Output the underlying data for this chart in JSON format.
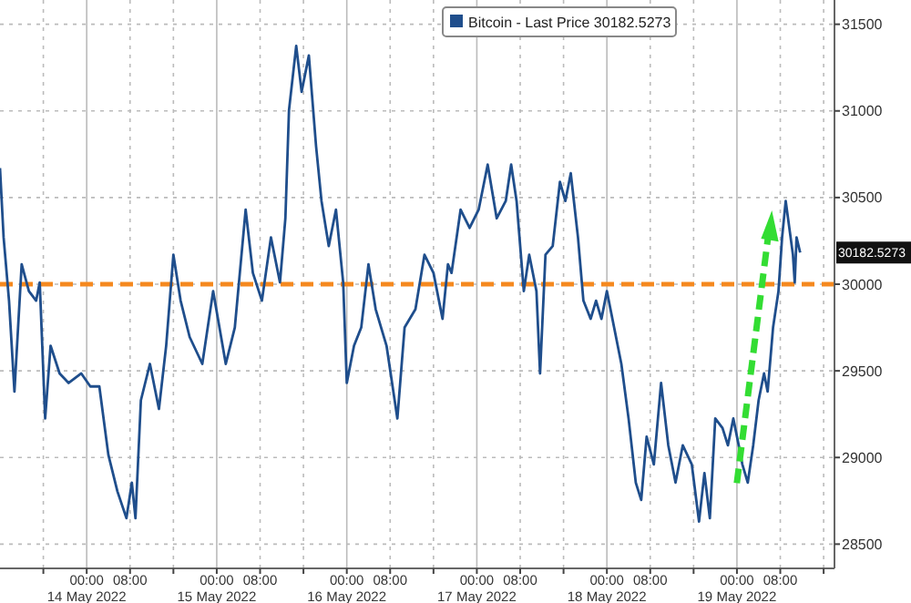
{
  "chart_data": {
    "type": "line",
    "xlim": [
      "2022-05-13T08:00",
      "2022-05-19T18:00"
    ],
    "ylim": [
      28360,
      31640
    ],
    "yticks": [
      28500,
      29000,
      29500,
      30000,
      30500,
      31000,
      31500
    ],
    "xticks": [
      {
        "value": "2022-05-13T16:00",
        "label": null
      },
      {
        "value": "2022-05-14T00:00",
        "label": "00:00\n14 May 2022"
      },
      {
        "value": "2022-05-14T08:00",
        "label": "08:00"
      },
      {
        "value": "2022-05-14T16:00",
        "label": null
      },
      {
        "value": "2022-05-15T00:00",
        "label": "00:00\n15 May 2022"
      },
      {
        "value": "2022-05-15T08:00",
        "label": "08:00"
      },
      {
        "value": "2022-05-15T16:00",
        "label": null
      },
      {
        "value": "2022-05-16T00:00",
        "label": "00:00\n16 May 2022"
      },
      {
        "value": "2022-05-16T08:00",
        "label": "08:00"
      },
      {
        "value": "2022-05-16T16:00",
        "label": null
      },
      {
        "value": "2022-05-17T00:00",
        "label": "00:00\n17 May 2022"
      },
      {
        "value": "2022-05-17T08:00",
        "label": "08:00"
      },
      {
        "value": "2022-05-17T16:00",
        "label": null
      },
      {
        "value": "2022-05-18T00:00",
        "label": "00:00\n18 May 2022"
      },
      {
        "value": "2022-05-18T08:00",
        "label": "08:00"
      },
      {
        "value": "2022-05-18T16:00",
        "label": null
      },
      {
        "value": "2022-05-19T00:00",
        "label": "00:00\n19 May 2022"
      },
      {
        "value": "2022-05-19T08:00",
        "label": "08:00"
      },
      {
        "value": "2022-05-19T16:00",
        "label": null
      }
    ],
    "grid": true,
    "legend": "top right",
    "marker": "none",
    "line_style": "solid",
    "ref_lines": [
      {
        "axis": "y",
        "value": 30000,
        "color": "#f5891f",
        "line_style": "dashed"
      }
    ],
    "annotations": [
      "30182.5273"
    ],
    "x": [
      "2022-05-13T08:00",
      "2022-05-13T08:40",
      "2022-05-13T09:40",
      "2022-05-13T10:40",
      "2022-05-13T12:00",
      "2022-05-13T13:20",
      "2022-05-13T14:40",
      "2022-05-13T15:20",
      "2022-05-13T16:20",
      "2022-05-13T17:20",
      "2022-05-13T19:00",
      "2022-05-13T20:40",
      "2022-05-13T23:00",
      "2022-05-14T00:40",
      "2022-05-14T02:20",
      "2022-05-14T04:00",
      "2022-05-14T05:40",
      "2022-05-14T07:20",
      "2022-05-14T08:20",
      "2022-05-14T09:00",
      "2022-05-14T10:00",
      "2022-05-14T11:40",
      "2022-05-14T13:20",
      "2022-05-14T14:40",
      "2022-05-14T16:00",
      "2022-05-14T17:20",
      "2022-05-14T19:00",
      "2022-05-14T21:20",
      "2022-05-14T23:20",
      "2022-05-15T01:40",
      "2022-05-15T03:20",
      "2022-05-15T05:20",
      "2022-05-15T06:40",
      "2022-05-15T08:20",
      "2022-05-15T10:00",
      "2022-05-15T11:40",
      "2022-05-15T12:40",
      "2022-05-15T13:20",
      "2022-05-15T14:40",
      "2022-05-15T15:40",
      "2022-05-15T17:00",
      "2022-05-15T18:20",
      "2022-05-15T19:20",
      "2022-05-15T20:40",
      "2022-05-15T22:00",
      "2022-05-15T23:20",
      "2022-05-16T00:00",
      "2022-05-16T01:20",
      "2022-05-16T02:40",
      "2022-05-16T04:00",
      "2022-05-16T05:20",
      "2022-05-16T07:20",
      "2022-05-16T09:20",
      "2022-05-16T10:40",
      "2022-05-16T12:40",
      "2022-05-16T14:20",
      "2022-05-16T16:00",
      "2022-05-16T17:40",
      "2022-05-16T18:40",
      "2022-05-16T19:20",
      "2022-05-16T21:00",
      "2022-05-16T22:40",
      "2022-05-17T00:20",
      "2022-05-17T02:00",
      "2022-05-17T03:40",
      "2022-05-17T05:20",
      "2022-05-17T06:20",
      "2022-05-17T07:20",
      "2022-05-17T08:40",
      "2022-05-17T09:40",
      "2022-05-17T11:00",
      "2022-05-17T11:40",
      "2022-05-17T12:40",
      "2022-05-17T14:00",
      "2022-05-17T15:20",
      "2022-05-17T16:20",
      "2022-05-17T17:20",
      "2022-05-17T18:40",
      "2022-05-17T19:40",
      "2022-05-17T21:00",
      "2022-05-17T22:00",
      "2022-05-17T23:00",
      "2022-05-18T00:00",
      "2022-05-18T01:20",
      "2022-05-18T02:40",
      "2022-05-18T04:00",
      "2022-05-18T05:20",
      "2022-05-18T06:20",
      "2022-05-18T07:20",
      "2022-05-18T08:40",
      "2022-05-18T10:00",
      "2022-05-18T11:20",
      "2022-05-18T12:40",
      "2022-05-18T14:00",
      "2022-05-18T15:40",
      "2022-05-18T17:00",
      "2022-05-18T18:00",
      "2022-05-18T19:00",
      "2022-05-18T20:00",
      "2022-05-18T21:20",
      "2022-05-18T22:20",
      "2022-05-18T23:20",
      "2022-05-19T00:20",
      "2022-05-19T01:00",
      "2022-05-19T02:00",
      "2022-05-19T03:00",
      "2022-05-19T04:00",
      "2022-05-19T05:00",
      "2022-05-19T05:40",
      "2022-05-19T06:40",
      "2022-05-19T07:40",
      "2022-05-19T08:20",
      "2022-05-19T09:00",
      "2022-05-19T09:40",
      "2022-05-19T10:20",
      "2022-05-19T10:40",
      "2022-05-19T11:00",
      "2022-05-19T11:40"
    ],
    "series": [
      {
        "name": "Bitcoin - Last Price 30182.5273",
        "color": "#1f4e8c",
        "values": [
          30670,
          30270,
          29905,
          29380,
          30115,
          29960,
          29905,
          30010,
          29225,
          29645,
          29485,
          29430,
          29485,
          29410,
          29410,
          29015,
          28805,
          28650,
          28855,
          28650,
          29330,
          29540,
          29280,
          29645,
          30170,
          29905,
          29695,
          29540,
          29960,
          29540,
          29750,
          30430,
          30065,
          29905,
          30270,
          30010,
          30380,
          31005,
          31375,
          31110,
          31320,
          30795,
          30480,
          30220,
          30430,
          30010,
          29430,
          29645,
          29750,
          30115,
          29855,
          29645,
          29225,
          29750,
          29855,
          30170,
          30065,
          29800,
          30115,
          30065,
          30430,
          30325,
          30430,
          30690,
          30380,
          30480,
          30690,
          30480,
          29960,
          30170,
          29960,
          29485,
          30170,
          30220,
          30590,
          30480,
          30640,
          30270,
          29905,
          29800,
          29905,
          29800,
          29960,
          29750,
          29540,
          29225,
          28855,
          28755,
          29120,
          28960,
          29430,
          29070,
          28855,
          29070,
          28960,
          28630,
          28910,
          28650,
          29225,
          29170,
          29070,
          29225,
          29070,
          28960,
          28855,
          29070,
          29330,
          29485,
          29380,
          29750,
          29960,
          30270,
          30480,
          30325,
          30170,
          30010,
          30270,
          30182.5273
        ]
      }
    ]
  }
}
